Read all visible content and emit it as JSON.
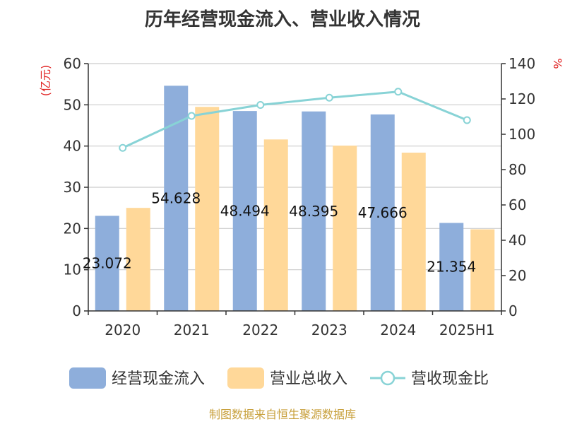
{
  "chart_data": {
    "type": "bar",
    "title": "历年经营现金流入、营业收入情况",
    "categories": [
      "2020",
      "2021",
      "2022",
      "2023",
      "2024",
      "2025H1"
    ],
    "series": [
      {
        "name": "经营现金流入",
        "type": "bar",
        "axis": "left",
        "color": "#8eaedb",
        "values": [
          23.072,
          54.628,
          48.494,
          48.395,
          47.666,
          21.354
        ],
        "labels": [
          "23.072",
          "54.628",
          "48.494",
          "48.395",
          "47.666",
          "21.354"
        ]
      },
      {
        "name": "营业总收入",
        "type": "bar",
        "axis": "left",
        "color": "#ffd899",
        "values": [
          25.0,
          49.5,
          41.6,
          40.1,
          38.4,
          19.8
        ]
      },
      {
        "name": "营收现金比",
        "type": "line",
        "axis": "right",
        "color": "#88d3d6",
        "values": [
          92.3,
          110.4,
          116.6,
          120.7,
          124.1,
          108.0
        ]
      }
    ],
    "y_left": {
      "label": "(亿元)",
      "min": 0,
      "max": 60,
      "ticks": [
        "0",
        "10",
        "20",
        "30",
        "40",
        "50",
        "60"
      ]
    },
    "y_right": {
      "label": "%",
      "min": 0,
      "max": 140,
      "ticks": [
        "0",
        "20",
        "40",
        "60",
        "80",
        "100",
        "120",
        "140"
      ]
    },
    "grid": true,
    "legend_position": "bottom"
  },
  "source": "制图数据来自恒生聚源数据库"
}
